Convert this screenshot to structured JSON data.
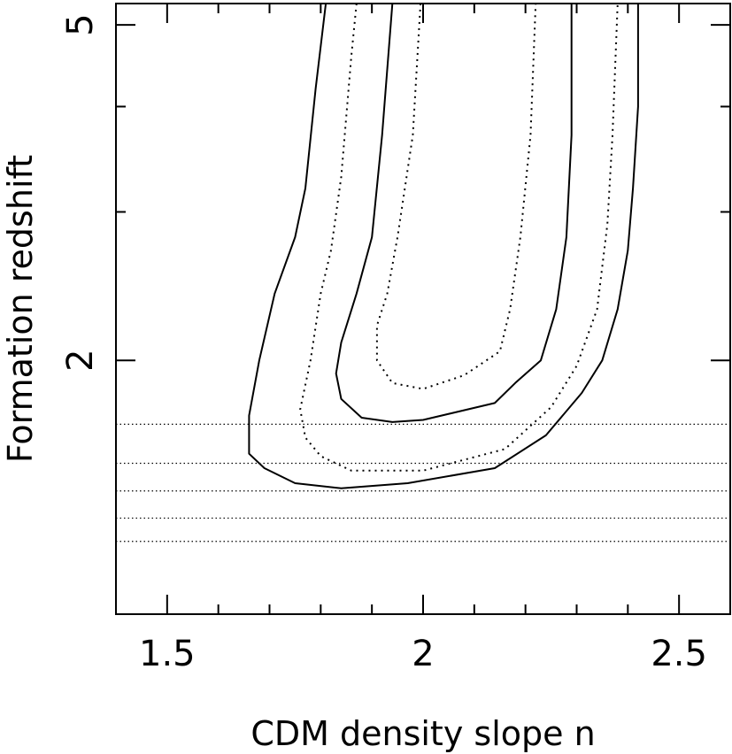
{
  "chart_data": {
    "type": "contour",
    "xlabel": "CDM density slope n",
    "ylabel": "Formation redshift",
    "xlim": [
      1.4,
      2.6
    ],
    "ylim": [
      1.0,
      5.3
    ],
    "yscale": "log",
    "x_ticks": [
      {
        "value": 1.5,
        "label": "1.5"
      },
      {
        "value": 2.0,
        "label": "2"
      },
      {
        "value": 2.5,
        "label": "2.5"
      }
    ],
    "x_minor_ticks": [
      1.6,
      1.7,
      1.8,
      1.9,
      2.1,
      2.2,
      2.3,
      2.4
    ],
    "y_ticks": [
      {
        "value": 2,
        "label": "2"
      },
      {
        "value": 5,
        "label": "5"
      }
    ],
    "y_minor_ticks": [
      3,
      4
    ],
    "horizontal_reference_lines": [
      1.22,
      1.3,
      1.4,
      1.51,
      1.68
    ],
    "reference_line_style": "dotted",
    "contours": [
      {
        "style": "solid",
        "points": [
          [
            1.81,
            5.3
          ],
          [
            1.79,
            4.2
          ],
          [
            1.77,
            3.2
          ],
          [
            1.75,
            2.8
          ],
          [
            1.71,
            2.4
          ],
          [
            1.68,
            2.0
          ],
          [
            1.66,
            1.72
          ],
          [
            1.66,
            1.55
          ],
          [
            1.69,
            1.49
          ],
          [
            1.75,
            1.43
          ],
          [
            1.84,
            1.41
          ],
          [
            1.97,
            1.43
          ],
          [
            2.14,
            1.49
          ],
          [
            2.24,
            1.63
          ],
          [
            2.31,
            1.83
          ],
          [
            2.35,
            2.0
          ],
          [
            2.38,
            2.3
          ],
          [
            2.4,
            2.7
          ],
          [
            2.41,
            3.2
          ],
          [
            2.42,
            4.0
          ],
          [
            2.42,
            5.3
          ]
        ]
      },
      {
        "style": "dotted",
        "points": [
          [
            1.87,
            5.3
          ],
          [
            1.86,
            4.6
          ],
          [
            1.84,
            3.3
          ],
          [
            1.82,
            2.7
          ],
          [
            1.8,
            2.4
          ],
          [
            1.78,
            2.0
          ],
          [
            1.76,
            1.75
          ],
          [
            1.77,
            1.62
          ],
          [
            1.8,
            1.54
          ],
          [
            1.86,
            1.48
          ],
          [
            2.0,
            1.48
          ],
          [
            2.16,
            1.57
          ],
          [
            2.25,
            1.76
          ],
          [
            2.3,
            1.97
          ],
          [
            2.34,
            2.3
          ],
          [
            2.36,
            2.9
          ],
          [
            2.37,
            3.7
          ],
          [
            2.38,
            5.3
          ]
        ]
      },
      {
        "style": "solid",
        "points": [
          [
            1.94,
            5.3
          ],
          [
            1.92,
            3.7
          ],
          [
            1.9,
            2.8
          ],
          [
            1.87,
            2.4
          ],
          [
            1.84,
            2.1
          ],
          [
            1.83,
            1.93
          ],
          [
            1.84,
            1.8
          ],
          [
            1.88,
            1.71
          ],
          [
            1.94,
            1.69
          ],
          [
            2.0,
            1.7
          ],
          [
            2.14,
            1.78
          ],
          [
            2.18,
            1.88
          ],
          [
            2.23,
            2.0
          ],
          [
            2.26,
            2.3
          ],
          [
            2.28,
            2.8
          ],
          [
            2.29,
            3.7
          ],
          [
            2.29,
            5.3
          ]
        ]
      },
      {
        "style": "dotted",
        "points": [
          [
            1.995,
            5.3
          ],
          [
            1.98,
            3.7
          ],
          [
            1.95,
            2.8
          ],
          [
            1.93,
            2.4
          ],
          [
            1.91,
            2.2
          ],
          [
            1.91,
            2.0
          ],
          [
            1.94,
            1.88
          ],
          [
            2.0,
            1.85
          ],
          [
            2.08,
            1.92
          ],
          [
            2.15,
            2.05
          ],
          [
            2.17,
            2.3
          ],
          [
            2.19,
            2.8
          ],
          [
            2.21,
            3.7
          ],
          [
            2.22,
            5.3
          ]
        ]
      }
    ]
  }
}
